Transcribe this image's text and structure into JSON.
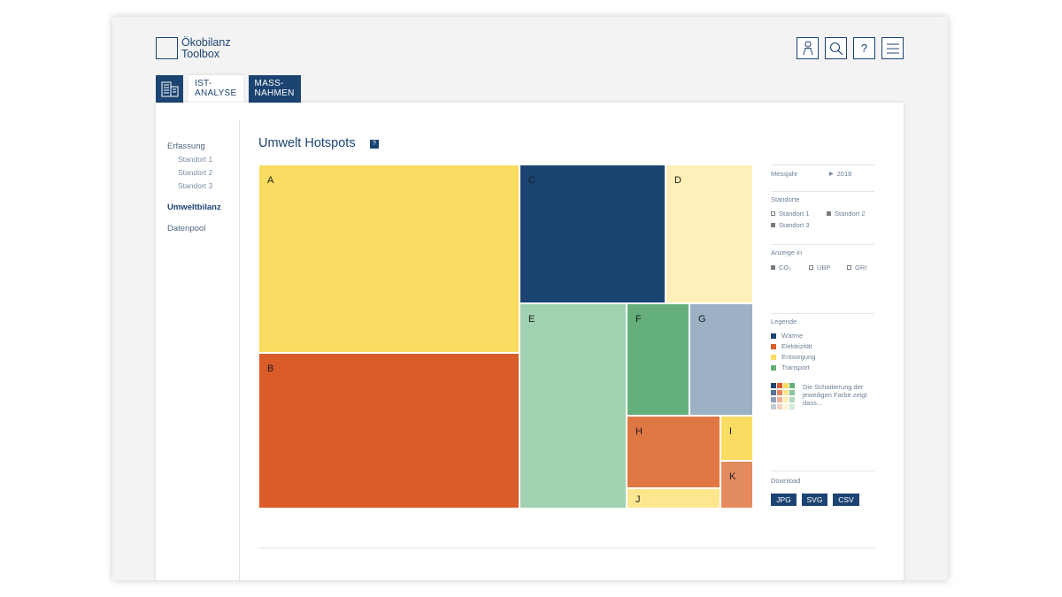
{
  "app": {
    "logo_line1": "Ökobilanz",
    "logo_line2": "Toolbox"
  },
  "header_icons": [
    "user-icon",
    "search-icon",
    "help-icon",
    "menu-icon"
  ],
  "header": {
    "help_glyph": "?"
  },
  "tabs": [
    {
      "label_line1": "IST-",
      "label_line2": "ANALYSE",
      "active": true
    },
    {
      "label_line1": "MASS-",
      "label_line2": "NAHMEN",
      "active": false
    }
  ],
  "sidebar": {
    "erfassung": "Erfassung",
    "standorte": [
      "Standort 1",
      "Standort 2",
      "Standort 3"
    ],
    "umweltbilanz": "Umweltbilanz",
    "datenpool": "Datenpool"
  },
  "page": {
    "title": "Umwelt Hotspots",
    "help": "?"
  },
  "treemap": {
    "tiles": [
      {
        "label": "A",
        "color": "#f9dc61"
      },
      {
        "label": "B",
        "color": "#da5c28"
      },
      {
        "label": "C",
        "color": "#1c4472"
      },
      {
        "label": "D",
        "color": "#fdf0b8"
      },
      {
        "label": "E",
        "color": "#a0d1b1"
      },
      {
        "label": "F",
        "color": "#65b07a"
      },
      {
        "label": "G",
        "color": "#9db1c5"
      },
      {
        "label": "H",
        "color": "#df7744"
      },
      {
        "label": "I",
        "color": "#f9dc61"
      },
      {
        "label": "J",
        "color": "#fce78f"
      },
      {
        "label": "K",
        "color": "#e38a5e"
      }
    ]
  },
  "filters": {
    "messjahr_label": "Messjahr",
    "messjahr_value": "2018",
    "standorte_label": "Standorte",
    "standorte_options": [
      {
        "label": "Standort 1",
        "checked": false
      },
      {
        "label": "Standort 2",
        "checked": true
      },
      {
        "label": "Standort 3",
        "checked": true
      }
    ],
    "anzeige_label": "Anzeige in",
    "anzeige_options": [
      {
        "label": "CO₂",
        "checked": true
      },
      {
        "label": "UBP",
        "checked": false
      },
      {
        "label": "GRI",
        "checked": false
      }
    ]
  },
  "legend": {
    "title": "Legende",
    "items": [
      {
        "label": "Wärme",
        "color": "#1c4472"
      },
      {
        "label": "Elektrizität",
        "color": "#da5c28"
      },
      {
        "label": "Entsorgung",
        "color": "#f9dc61"
      },
      {
        "label": "Transport",
        "color": "#65b07a"
      }
    ],
    "shade_text": "Die Schattierung der jeweiligen Farbe zeigt dass..."
  },
  "download": {
    "title": "Download",
    "buttons": [
      "JPG",
      "SVG",
      "CSV"
    ]
  }
}
